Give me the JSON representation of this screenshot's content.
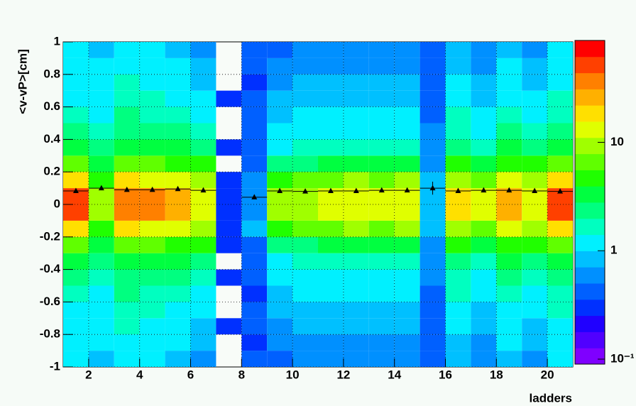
{
  "chart_data": {
    "type": "heatmap",
    "y_label": "<v-vP>[cm]",
    "x_label": "ladders",
    "xlim": [
      1,
      21
    ],
    "xticks": [
      2,
      4,
      6,
      8,
      10,
      12,
      14,
      16,
      18,
      20
    ],
    "ylim": [
      -1,
      1
    ],
    "yticks": [
      -1,
      -0.8,
      -0.6,
      -0.4,
      -0.2,
      0,
      0.2,
      0.4,
      0.6,
      0.8,
      1
    ],
    "grid": true,
    "log_z": true,
    "zlim": [
      0.09,
      87
    ],
    "zticks": [
      {
        "value": 0.1,
        "label": "10⁻¹"
      },
      1,
      10
    ],
    "palette": [
      "#7f00ff",
      "#5000ff",
      "#2000ff",
      "#0030ff",
      "#0060ff",
      "#0090ff",
      "#00c0ff",
      "#00f0ff",
      "#00ffc0",
      "#00ff80",
      "#00ff40",
      "#20ff00",
      "#60ff00",
      "#a0ff00",
      "#e0ff00",
      "#ffe000",
      "#ffb000",
      "#ff8000",
      "#ff4000",
      "#ff0000"
    ],
    "x_bins": [
      1,
      2,
      3,
      4,
      5,
      6,
      7,
      8,
      9,
      10,
      11,
      12,
      13,
      14,
      15,
      16,
      17,
      18,
      19,
      20,
      21
    ],
    "y_bins": [
      -1,
      -0.9,
      -0.8,
      -0.7,
      -0.6,
      -0.5,
      -0.4,
      -0.3,
      -0.2,
      -0.1,
      0,
      0.1,
      0.2,
      0.3,
      0.4,
      0.5,
      0.6,
      0.7,
      0.8,
      0.9,
      1
    ],
    "counts": [
      [
        1,
        1.2,
        1,
        1.3,
        1.5,
        2,
        3,
        6,
        20,
        50,
        50,
        20,
        6,
        3,
        2,
        1.5,
        1.3,
        1,
        1.2,
        1
      ],
      [
        0.8,
        1,
        1,
        1,
        1.2,
        1.5,
        2,
        3,
        5,
        10,
        10,
        5,
        3,
        2,
        1.5,
        1.2,
        1,
        1,
        1,
        0.8
      ],
      [
        1,
        1.2,
        1.5,
        1.5,
        2,
        2.5,
        3.5,
        7,
        18,
        40,
        40,
        18,
        7,
        3.5,
        2.5,
        2,
        1.5,
        1.5,
        1.2,
        1
      ],
      [
        1,
        1.2,
        1.3,
        1.5,
        1.8,
        2.2,
        3,
        6,
        15,
        35,
        35,
        15,
        6,
        3,
        2.2,
        1.8,
        1.5,
        1.3,
        1.2,
        1
      ],
      [
        0.9,
        1,
        1.2,
        1.3,
        1.6,
        2,
        3,
        5,
        12,
        25,
        25,
        12,
        5,
        3,
        2,
        1.6,
        1.3,
        1.2,
        1,
        0.9
      ],
      [
        0.7,
        0.8,
        0.9,
        1,
        1.2,
        1.5,
        2,
        4,
        8,
        15,
        15,
        8,
        4,
        2,
        1.5,
        1.2,
        1,
        0.9,
        0.8,
        0.7
      ],
      [
        0,
        0,
        0.3,
        0,
        0,
        0.3,
        0,
        0.3,
        0.3,
        0.3,
        0.3,
        0.3,
        0,
        0.3,
        0,
        0,
        0.3,
        0,
        0,
        0
      ],
      [
        0.4,
        0.3,
        0.4,
        0.4,
        0.3,
        0.4,
        0.5,
        0.4,
        0.8,
        0.6,
        0.6,
        0.6,
        0.5,
        0.5,
        0.4,
        0.4,
        0.5,
        0.3,
        0.4,
        0.4
      ],
      [
        0.5,
        0.6,
        0.7,
        0.8,
        0.9,
        1,
        1.3,
        2,
        5,
        8,
        8,
        5,
        2,
        1.3,
        1,
        0.9,
        0.8,
        0.7,
        0.6,
        0.5
      ],
      [
        0.6,
        0.7,
        0.8,
        0.9,
        1,
        1.2,
        1.5,
        2.5,
        6,
        10,
        10,
        6,
        2.5,
        1.5,
        1.2,
        1,
        0.9,
        0.8,
        0.7,
        0.6
      ],
      [
        0.6,
        0.7,
        0.8,
        0.9,
        1,
        1.2,
        1.6,
        3,
        7,
        12,
        12,
        7,
        3,
        1.6,
        1.2,
        1,
        0.9,
        0.8,
        0.7,
        0.6
      ],
      [
        0.6,
        0.7,
        0.8,
        0.9,
        1,
        1.3,
        1.8,
        3.5,
        8,
        14,
        14,
        8,
        3.5,
        1.8,
        1.3,
        1,
        0.9,
        0.8,
        0.7,
        0.6
      ],
      [
        0.6,
        0.7,
        0.8,
        0.9,
        1,
        1.2,
        1.6,
        3,
        7,
        12,
        12,
        7,
        3,
        1.6,
        1.2,
        1,
        0.9,
        0.8,
        0.7,
        0.6
      ],
      [
        0.6,
        0.7,
        0.8,
        0.9,
        1,
        1.3,
        1.8,
        3.5,
        8,
        14,
        14,
        8,
        3.5,
        1.8,
        1.3,
        1,
        0.9,
        0.8,
        0.7,
        0.6
      ],
      [
        0.4,
        0.5,
        0.4,
        0.5,
        0.5,
        0.6,
        0.6,
        0.7,
        0.8,
        0.9,
        0.9,
        0.8,
        0.7,
        0.6,
        0.6,
        0.5,
        0.5,
        0.4,
        0.5,
        0.4
      ],
      [
        0.8,
        0.9,
        1,
        1.2,
        1.5,
        1.8,
        2.5,
        4.5,
        10,
        20,
        20,
        10,
        4.5,
        2.5,
        1.8,
        1.5,
        1.2,
        1,
        0.9,
        0.8
      ],
      [
        0.6,
        0.7,
        0.8,
        0.9,
        1,
        1.2,
        1.6,
        3,
        7,
        12,
        12,
        7,
        3,
        1.6,
        1.2,
        1,
        0.9,
        0.8,
        0.7,
        0.6
      ],
      [
        0.9,
        1,
        1.2,
        1.3,
        1.6,
        2,
        3,
        5,
        12,
        25,
        25,
        12,
        5,
        3,
        2,
        1.6,
        1.3,
        1.2,
        1,
        0.9
      ],
      [
        0.7,
        0.8,
        0.9,
        1,
        1.2,
        1.5,
        2,
        4,
        8,
        15,
        15,
        8,
        4,
        2,
        1.5,
        1.2,
        1,
        0.9,
        0.8,
        0.7
      ],
      [
        1,
        1.2,
        1.4,
        1.5,
        1.8,
        2.2,
        3.2,
        6.5,
        18,
        45,
        45,
        18,
        6.5,
        3.2,
        2.2,
        1.8,
        1.5,
        1.4,
        1.2,
        1
      ]
    ],
    "profile": {
      "color": "#000000",
      "x": [
        1.5,
        2.5,
        3.5,
        4.5,
        5.5,
        6.5,
        7.5,
        8.5,
        9.5,
        10.5,
        11.5,
        12.5,
        13.5,
        14.5,
        15.5,
        16.5,
        17.5,
        18.5,
        19.5,
        20.5
      ],
      "values": [
        0.083,
        0.1,
        0.09,
        0.09,
        0.095,
        0.087,
        null,
        0.044,
        0.083,
        0.08,
        0.083,
        0.083,
        0.087,
        0.087,
        0.1,
        0.083,
        0.087,
        0.087,
        0.083,
        0.08
      ],
      "errors": [
        0.004,
        0.006,
        0.004,
        0.004,
        0.005,
        0.006,
        null,
        0.01,
        0.006,
        0.005,
        0.005,
        0.005,
        0.005,
        0.005,
        0.04,
        0.005,
        0.005,
        0.004,
        0.005,
        0.004
      ]
    }
  }
}
